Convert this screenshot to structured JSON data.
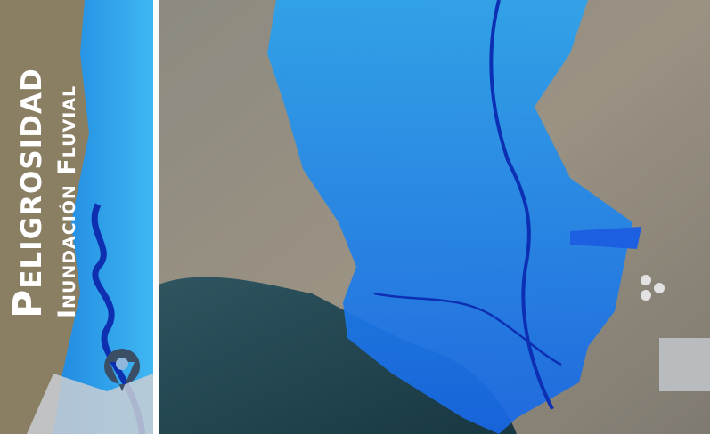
{
  "banner": {
    "title": "Peligrosidad",
    "subtitle": "Inundación Fluvial"
  }
}
